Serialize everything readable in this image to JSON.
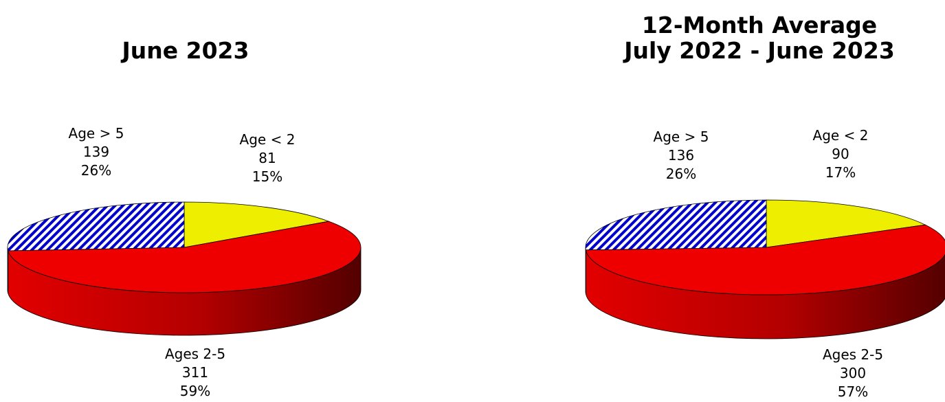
{
  "chart_data": [
    {
      "type": "pie",
      "title": "June 2023",
      "subtitle": "",
      "start_category": "Age < 2",
      "slices": [
        {
          "label": "Age < 2",
          "value": 81,
          "percent": "15%",
          "color": "#EEEE00",
          "pattern": "solid"
        },
        {
          "label": "Ages 2-5",
          "value": 311,
          "percent": "59%",
          "color": "#EE0000",
          "pattern": "solid"
        },
        {
          "label": "Age > 5",
          "value": 139,
          "percent": "26%",
          "color": "#0000CC",
          "pattern": "diagonal-hatch"
        }
      ]
    },
    {
      "type": "pie",
      "title": "12-Month Average",
      "subtitle": "July 2022 - June 2023",
      "slices": [
        {
          "label": "Age < 2",
          "value": 90,
          "percent": "17%",
          "color": "#EEEE00",
          "pattern": "solid"
        },
        {
          "label": "Ages 2-5",
          "value": 300,
          "percent": "57%",
          "color": "#EE0000",
          "pattern": "solid"
        },
        {
          "label": "Age > 5",
          "value": 136,
          "percent": "26%",
          "color": "#0000CC",
          "pattern": "diagonal-hatch"
        }
      ]
    }
  ]
}
